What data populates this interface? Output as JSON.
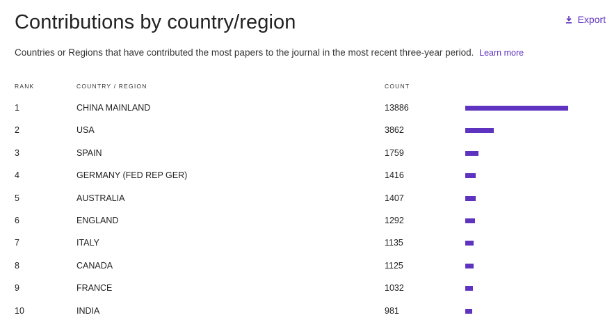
{
  "title": "Contributions by country/region",
  "export_label": "Export",
  "subtitle": "Countries or Regions that have contributed the most papers to the journal in the most recent three-year period.",
  "learn_more": "Learn more",
  "columns": {
    "rank": "RANK",
    "country": "COUNTRY / REGION",
    "count": "COUNT"
  },
  "colors": {
    "accent": "#5e33bf"
  },
  "rows": [
    {
      "rank": "1",
      "country": "CHINA MAINLAND",
      "count": "13886"
    },
    {
      "rank": "2",
      "country": "USA",
      "count": "3862"
    },
    {
      "rank": "3",
      "country": "SPAIN",
      "count": "1759"
    },
    {
      "rank": "4",
      "country": "GERMANY (FED REP GER)",
      "count": "1416"
    },
    {
      "rank": "5",
      "country": "AUSTRALIA",
      "count": "1407"
    },
    {
      "rank": "6",
      "country": "ENGLAND",
      "count": "1292"
    },
    {
      "rank": "7",
      "country": "ITALY",
      "count": "1135"
    },
    {
      "rank": "8",
      "country": "CANADA",
      "count": "1125"
    },
    {
      "rank": "9",
      "country": "FRANCE",
      "count": "1032"
    },
    {
      "rank": "10",
      "country": "INDIA",
      "count": "981"
    }
  ]
}
